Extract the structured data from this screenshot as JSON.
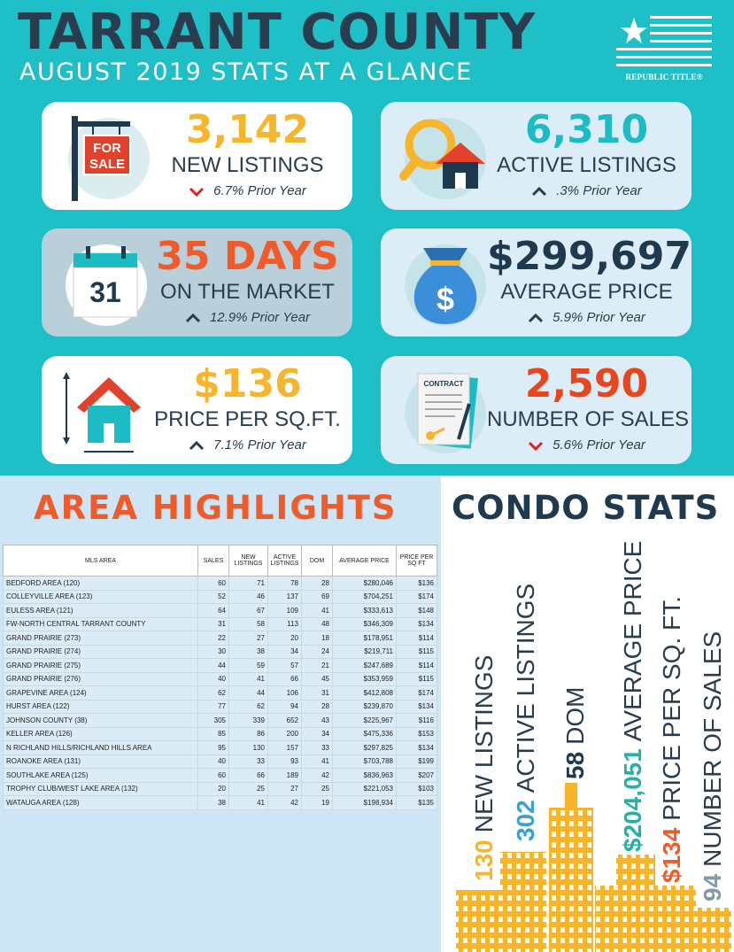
{
  "header": {
    "title": "TARRANT COUNTY",
    "subtitle": "AUGUST 2019 STATS AT A GLANCE",
    "logo": "REPUBLIC TITLE®"
  },
  "cards": [
    {
      "value": "3,142",
      "label": "NEW LISTINGS",
      "change": "6.7% Prior Year",
      "direction": "down",
      "color": "#f7b52c",
      "icon_text": [
        "FOR",
        "SALE"
      ]
    },
    {
      "value": "6,310",
      "label": "ACTIVE LISTINGS",
      "change": ".3% Prior Year",
      "direction": "up",
      "color": "#1cbcc4"
    },
    {
      "value": "35 DAYS",
      "label": "ON THE MARKET",
      "change": "12.9% Prior Year",
      "direction": "up",
      "color": "#f15a29",
      "icon_text": [
        "31"
      ]
    },
    {
      "value": "$299,697",
      "label": "AVERAGE PRICE",
      "change": "5.9% Prior Year",
      "direction": "up",
      "color": "#1f3a4f",
      "icon_text": [
        "$"
      ]
    },
    {
      "value": "$136",
      "label": "PRICE PER SQ.FT.",
      "change": "7.1% Prior Year",
      "direction": "up",
      "color": "#f7b52c"
    },
    {
      "value": "2,590",
      "label": "NUMBER OF SALES",
      "change": "5.6% Prior Year",
      "direction": "down",
      "color": "#e8461e",
      "icon_text": [
        "CONTRACT"
      ]
    }
  ],
  "area_highlights": {
    "title": "AREA HIGHLIGHTS",
    "table": {
      "headers": [
        "MLS AREA",
        "SALES",
        "NEW LISTINGS",
        "ACTIVE LISTINGS",
        "DOM",
        "AVERAGE PRICE",
        "PRICE PER SQ FT"
      ],
      "rows": [
        [
          "BEDFORD AREA (120)",
          "60",
          "71",
          "78",
          "28",
          "$280,046",
          "$136"
        ],
        [
          "COLLEYVILLE AREA (123)",
          "52",
          "46",
          "137",
          "69",
          "$704,251",
          "$174"
        ],
        [
          "EULESS AREA (121)",
          "64",
          "67",
          "109",
          "41",
          "$333,613",
          "$148"
        ],
        [
          "FW-NORTH CENTRAL TARRANT COUNTY",
          "31",
          "58",
          "113",
          "48",
          "$346,309",
          "$134"
        ],
        [
          "GRAND PRAIRIE (273)",
          "22",
          "27",
          "20",
          "18",
          "$178,951",
          "$114"
        ],
        [
          "GRAND PRAIRIE (274)",
          "30",
          "38",
          "34",
          "24",
          "$219,711",
          "$115"
        ],
        [
          "GRAND PRAIRIE (275)",
          "44",
          "59",
          "57",
          "21",
          "$247,689",
          "$114"
        ],
        [
          "GRAND PRAIRIE (276)",
          "40",
          "41",
          "66",
          "45",
          "$353,959",
          "$115"
        ],
        [
          "GRAPEVINE AREA (124)",
          "62",
          "44",
          "106",
          "31",
          "$412,808",
          "$174"
        ],
        [
          "HURST AREA (122)",
          "77",
          "62",
          "94",
          "28",
          "$239,870",
          "$134"
        ],
        [
          "JOHNSON COUNTY (38)",
          "305",
          "339",
          "652",
          "43",
          "$225,967",
          "$116"
        ],
        [
          "KELLER AREA (126)",
          "85",
          "86",
          "200",
          "34",
          "$475,336",
          "$153"
        ],
        [
          "N RICHLAND HILLS/RICHLAND HILLS AREA",
          "95",
          "130",
          "157",
          "33",
          "$297,825",
          "$134"
        ],
        [
          "ROANOKE AREA (131)",
          "40",
          "33",
          "93",
          "41",
          "$703,788",
          "$199"
        ],
        [
          "SOUTHLAKE AREA (125)",
          "60",
          "66",
          "189",
          "42",
          "$836,963",
          "$207"
        ],
        [
          "TROPHY CLUB/WEST LAKE AREA (132)",
          "20",
          "25",
          "27",
          "25",
          "$221,053",
          "$103"
        ],
        [
          "WATAUGA AREA (128)",
          "38",
          "41",
          "42",
          "19",
          "$198,934",
          "$135"
        ]
      ]
    }
  },
  "condo_stats": {
    "title": "CONDO STATS",
    "items": [
      {
        "value": "130",
        "label": "NEW LISTINGS",
        "color": "#f7b52c"
      },
      {
        "value": "302",
        "label": "ACTIVE LISTINGS",
        "color": "#3aa0d8"
      },
      {
        "value": "58",
        "label": "DOM",
        "color": "#1f3a4f"
      },
      {
        "value": "$204,051",
        "label": "AVERAGE PRICE",
        "color": "#22b3a6"
      },
      {
        "value": "$134",
        "label": "PRICE PER SQ. FT.",
        "color": "#f15a29"
      },
      {
        "value": "94",
        "label": "NUMBER OF SALES",
        "color": "#7f9ba8"
      }
    ]
  }
}
